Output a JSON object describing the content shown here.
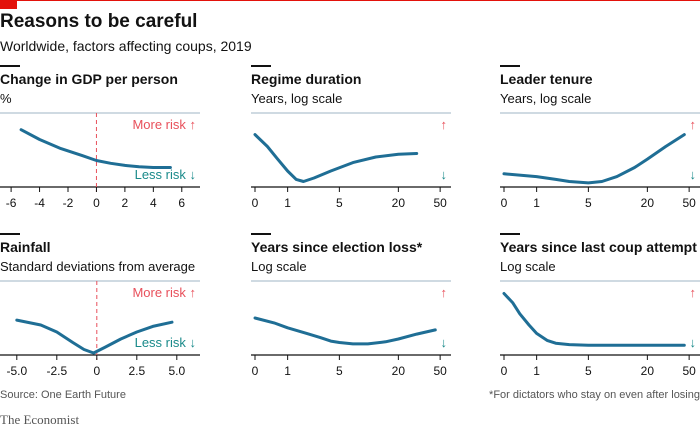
{
  "header": {
    "title": "Reasons to be careful",
    "subtitle": "Worldwide, factors affecting coups, 2019"
  },
  "colors": {
    "line": "#1f6e95",
    "more_risk": "#e8505b",
    "less_risk": "#1a8a8a",
    "rule": "#121212",
    "red_mark": "#e3120b"
  },
  "risk_labels": {
    "more": "More risk",
    "less": "Less risk",
    "up": "↑",
    "down": "↓"
  },
  "chart_data": [
    {
      "type": "line",
      "title": "Change in GDP per person",
      "unit": "%",
      "scale": "linear",
      "xlim": [
        -6.5,
        7
      ],
      "ylim": [
        0,
        1
      ],
      "zero_line": true,
      "show_risk_text": true,
      "ticks": [
        -6,
        -4,
        -2,
        0,
        2,
        4,
        6
      ],
      "tick_labels": [
        "-6",
        "-4",
        "-2",
        "0",
        "2",
        "4",
        "6"
      ],
      "x": [
        -5.3,
        -4,
        -2.5,
        -1,
        0,
        1,
        2,
        3,
        4,
        5.2
      ],
      "y": [
        0.79,
        0.65,
        0.52,
        0.42,
        0.35,
        0.31,
        0.28,
        0.26,
        0.25,
        0.25
      ]
    },
    {
      "type": "line",
      "title": "Regime duration",
      "unit": "Years, log scale",
      "scale": "log1p",
      "xlim": [
        0,
        58
      ],
      "ylim": [
        0,
        1
      ],
      "zero_line": false,
      "show_risk_text": false,
      "ticks": [
        0,
        1,
        5,
        20,
        50
      ],
      "tick_labels": [
        "0",
        "1",
        "5",
        "20",
        "50"
      ],
      "x": [
        0,
        0.3,
        0.6,
        1,
        1.4,
        1.8,
        2.5,
        4,
        7,
        12,
        20,
        30
      ],
      "y": [
        0.72,
        0.55,
        0.38,
        0.2,
        0.08,
        0.05,
        0.1,
        0.2,
        0.32,
        0.4,
        0.44,
        0.45
      ]
    },
    {
      "type": "line",
      "title": "Leader tenure",
      "unit": "Years, log scale",
      "scale": "log1p",
      "xlim": [
        0,
        58
      ],
      "ylim": [
        0,
        1
      ],
      "zero_line": false,
      "show_risk_text": false,
      "ticks": [
        0,
        1,
        5,
        20,
        50
      ],
      "tick_labels": [
        "0",
        "1",
        "5",
        "20",
        "50"
      ],
      "x": [
        0,
        1,
        2,
        3,
        5,
        7,
        10,
        15,
        20,
        30,
        45
      ],
      "y": [
        0.16,
        0.12,
        0.08,
        0.05,
        0.03,
        0.05,
        0.12,
        0.25,
        0.37,
        0.55,
        0.72
      ]
    },
    {
      "type": "line",
      "title": "Rainfall",
      "unit": "Standard deviations from average",
      "scale": "linear",
      "xlim": [
        -5.8,
        6.2
      ],
      "ylim": [
        0,
        1
      ],
      "zero_line": true,
      "show_risk_text": true,
      "ticks": [
        -5,
        -2.5,
        0,
        2.5,
        5
      ],
      "tick_labels": [
        "-5.0",
        "-2.5",
        "0",
        "2.5",
        "5.0"
      ],
      "x": [
        -5,
        -3.5,
        -2.5,
        -1.5,
        -0.8,
        -0.2,
        0.5,
        1.5,
        2.5,
        3.5,
        4.7
      ],
      "y": [
        0.47,
        0.4,
        0.3,
        0.15,
        0.05,
        0.0,
        0.08,
        0.2,
        0.3,
        0.38,
        0.44
      ]
    },
    {
      "type": "line",
      "title": "Years since election loss*",
      "unit": "Log scale",
      "scale": "log1p",
      "xlim": [
        0,
        58
      ],
      "ylim": [
        0,
        1
      ],
      "zero_line": false,
      "show_risk_text": false,
      "ticks": [
        0,
        1,
        5,
        20,
        50
      ],
      "tick_labels": [
        "0",
        "1",
        "5",
        "20",
        "50"
      ],
      "x": [
        0,
        0.5,
        1,
        2,
        3,
        4,
        5,
        7,
        10,
        15,
        20,
        30,
        45
      ],
      "y": [
        0.5,
        0.43,
        0.36,
        0.28,
        0.22,
        0.17,
        0.15,
        0.13,
        0.13,
        0.16,
        0.2,
        0.27,
        0.33
      ]
    },
    {
      "type": "line",
      "title": "Years since last coup attempt",
      "unit": "Log scale",
      "scale": "log1p",
      "xlim": [
        0,
        58
      ],
      "ylim": [
        0,
        1
      ],
      "zero_line": false,
      "show_risk_text": false,
      "ticks": [
        0,
        1,
        5,
        20,
        50
      ],
      "tick_labels": [
        "0",
        "1",
        "5",
        "20",
        "50"
      ],
      "x": [
        0,
        0.2,
        0.4,
        0.7,
        1,
        1.5,
        2,
        3,
        5,
        10,
        20,
        45
      ],
      "y": [
        0.85,
        0.72,
        0.56,
        0.4,
        0.28,
        0.18,
        0.14,
        0.12,
        0.11,
        0.11,
        0.11,
        0.11
      ]
    }
  ],
  "footer": {
    "source": "Source: One Earth Future",
    "footnote": "*For dictators who stay on even after losing",
    "brand": "The Economist"
  }
}
